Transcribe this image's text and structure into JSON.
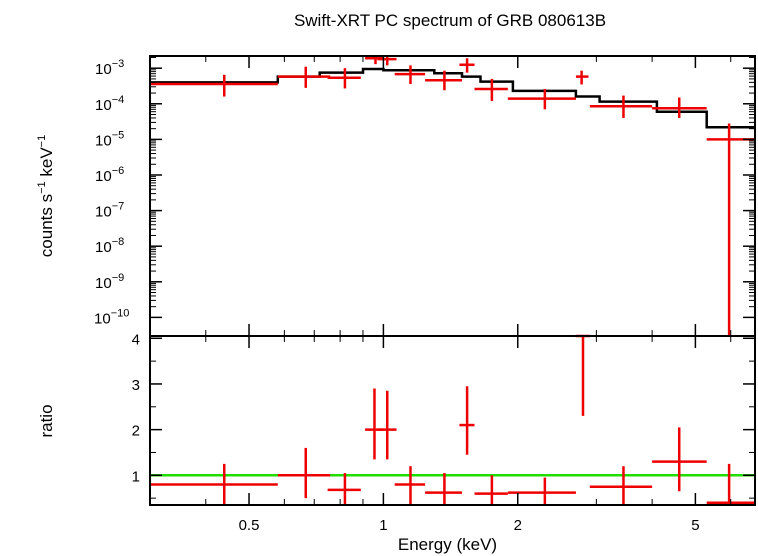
{
  "chart_data": [
    {
      "type": "line",
      "panel": "spectrum",
      "title": "Swift-XRT PC spectrum of GRB 080613B",
      "ylabel_html": "counts s<tspan dy='-6' font-size='11'>−1</tspan><tspan dy='6'> keV</tspan><tspan dy='-6' font-size='11'>−1</tspan>",
      "ylabel_parts": [
        "counts s",
        "−1",
        " keV",
        "−1"
      ],
      "x_scale": "log",
      "y_scale": "log",
      "xlim": [
        0.3,
        6.8
      ],
      "ylim": [
        3e-11,
        0.0022
      ],
      "y_ticks": [
        {
          "value": 0.001,
          "base": "10",
          "exp": "−3"
        },
        {
          "value": 0.0001,
          "base": "10",
          "exp": "−4"
        },
        {
          "value": 1e-05,
          "base": "10",
          "exp": "−5"
        },
        {
          "value": 1e-06,
          "base": "10",
          "exp": "−6"
        },
        {
          "value": 1e-07,
          "base": "10",
          "exp": "−7"
        },
        {
          "value": 1e-08,
          "base": "10",
          "exp": "−8"
        },
        {
          "value": 1e-09,
          "base": "10",
          "exp": "−9"
        },
        {
          "value": 1e-10,
          "base": "10",
          "exp": "−10"
        }
      ],
      "model_color": "#000000",
      "data_color": "#ee0000",
      "series": [
        {
          "name": "",
          "kind": "model-step",
          "x_edges": [
            0.3,
            0.58,
            0.72,
            0.9,
            1.0,
            1.3,
            1.5,
            1.65,
            1.95,
            2.7,
            3.05,
            4.1,
            5.3,
            6.8
          ],
          "y": [
            0.0004,
            0.00058,
            0.00075,
            0.00095,
            0.00088,
            0.00072,
            0.00058,
            0.00042,
            0.00023,
            0.00016,
            0.000115,
            6e-05,
            2.2e-05
          ]
        },
        {
          "name": "",
          "kind": "data-crosses",
          "points": [
            {
              "x": 0.44,
              "xlo": 0.3,
              "xhi": 0.58,
              "y": 0.00036,
              "ylo": 0.00016,
              "yhi": 0.00065
            },
            {
              "x": 0.67,
              "xlo": 0.58,
              "xhi": 0.76,
              "y": 0.00058,
              "ylo": 0.00028,
              "yhi": 0.0011
            },
            {
              "x": 0.82,
              "xlo": 0.75,
              "xhi": 0.89,
              "y": 0.00054,
              "ylo": 0.00027,
              "yhi": 0.001
            },
            {
              "x": 0.96,
              "xlo": 0.91,
              "xhi": 1.0,
              "y": 0.0019,
              "ylo": 0.0013,
              "yhi": 0.0022
            },
            {
              "x": 1.02,
              "xlo": 0.97,
              "xhi": 1.07,
              "y": 0.0018,
              "ylo": 0.0012,
              "yhi": 0.0022
            },
            {
              "x": 1.15,
              "xlo": 1.06,
              "xhi": 1.24,
              "y": 0.00068,
              "ylo": 0.00036,
              "yhi": 0.0012
            },
            {
              "x": 1.37,
              "xlo": 1.24,
              "xhi": 1.5,
              "y": 0.00046,
              "ylo": 0.00024,
              "yhi": 0.00085
            },
            {
              "x": 1.54,
              "xlo": 1.48,
              "xhi": 1.6,
              "y": 0.00125,
              "ylo": 0.00075,
              "yhi": 0.0019
            },
            {
              "x": 1.75,
              "xlo": 1.6,
              "xhi": 1.9,
              "y": 0.00026,
              "ylo": 0.00012,
              "yhi": 0.0005
            },
            {
              "x": 2.3,
              "xlo": 1.9,
              "xhi": 2.7,
              "y": 0.00014,
              "ylo": 7e-05,
              "yhi": 0.00026
            },
            {
              "x": 2.78,
              "xlo": 2.7,
              "xhi": 2.88,
              "y": 0.00058,
              "ylo": 0.00035,
              "yhi": 0.00085
            },
            {
              "x": 3.45,
              "xlo": 2.9,
              "xhi": 4.0,
              "y": 8.5e-05,
              "ylo": 4e-05,
              "yhi": 0.00017
            },
            {
              "x": 4.6,
              "xlo": 4.0,
              "xhi": 5.3,
              "y": 7.5e-05,
              "ylo": 4e-05,
              "yhi": 0.00015
            },
            {
              "x": 5.95,
              "xlo": 5.3,
              "xhi": 6.8,
              "y": 1e-05,
              "ylo": 3e-11,
              "yhi": 2.8e-05
            }
          ]
        }
      ]
    },
    {
      "type": "scatter",
      "panel": "ratio",
      "ylabel": "ratio",
      "xlabel": "Energy (keV)",
      "x_scale": "log",
      "xlim": [
        0.3,
        6.8
      ],
      "ylim": [
        0.35,
        4.05
      ],
      "x_ticks": [
        {
          "value": 0.5,
          "label": "0.5"
        },
        {
          "value": 1,
          "label": "1"
        },
        {
          "value": 2,
          "label": "2"
        },
        {
          "value": 5,
          "label": "5"
        }
      ],
      "x_minor_ticks": [
        0.3,
        0.4,
        0.6,
        0.7,
        0.8,
        0.9,
        3,
        4,
        6
      ],
      "y_ticks": [
        {
          "value": 1,
          "label": "1"
        },
        {
          "value": 2,
          "label": "2"
        },
        {
          "value": 3,
          "label": "3"
        },
        {
          "value": 4,
          "label": "4"
        }
      ],
      "reference_line": {
        "y": 1,
        "color": "#22dd00"
      },
      "data_color": "#ee0000",
      "points": [
        {
          "x": 0.44,
          "xlo": 0.3,
          "xhi": 0.58,
          "y": 0.8,
          "ylo": 0.35,
          "yhi": 1.25
        },
        {
          "x": 0.67,
          "xlo": 0.58,
          "xhi": 0.76,
          "y": 1.0,
          "ylo": 0.5,
          "yhi": 1.6
        },
        {
          "x": 0.82,
          "xlo": 0.75,
          "xhi": 0.89,
          "y": 0.68,
          "ylo": 0.35,
          "yhi": 1.05
        },
        {
          "x": 0.955,
          "xlo": 0.91,
          "xhi": 1.0,
          "y": 2.0,
          "ylo": 1.35,
          "yhi": 2.9
        },
        {
          "x": 1.02,
          "xlo": 0.97,
          "xhi": 1.07,
          "y": 2.0,
          "ylo": 1.35,
          "yhi": 2.85
        },
        {
          "x": 1.15,
          "xlo": 1.06,
          "xhi": 1.24,
          "y": 0.8,
          "ylo": 0.35,
          "yhi": 1.2
        },
        {
          "x": 1.37,
          "xlo": 1.24,
          "xhi": 1.5,
          "y": 0.62,
          "ylo": 0.35,
          "yhi": 1.05
        },
        {
          "x": 1.54,
          "xlo": 1.48,
          "xhi": 1.6,
          "y": 2.1,
          "ylo": 1.45,
          "yhi": 2.95
        },
        {
          "x": 1.75,
          "xlo": 1.6,
          "xhi": 1.9,
          "y": 0.6,
          "ylo": 0.35,
          "yhi": 1.0
        },
        {
          "x": 2.3,
          "xlo": 1.9,
          "xhi": 2.7,
          "y": 0.62,
          "ylo": 0.35,
          "yhi": 0.95
        },
        {
          "x": 2.8,
          "xlo": 2.7,
          "xhi": 2.9,
          "y": 4.05,
          "ylo": 2.3,
          "yhi": 4.05
        },
        {
          "x": 3.45,
          "xlo": 2.9,
          "xhi": 4.0,
          "y": 0.75,
          "ylo": 0.35,
          "yhi": 1.2
        },
        {
          "x": 4.6,
          "xlo": 4.0,
          "xhi": 5.3,
          "y": 1.3,
          "ylo": 0.65,
          "yhi": 2.05
        },
        {
          "x": 5.95,
          "xlo": 5.3,
          "xhi": 6.8,
          "y": 0.4,
          "ylo": 0.35,
          "yhi": 1.25
        }
      ]
    }
  ]
}
